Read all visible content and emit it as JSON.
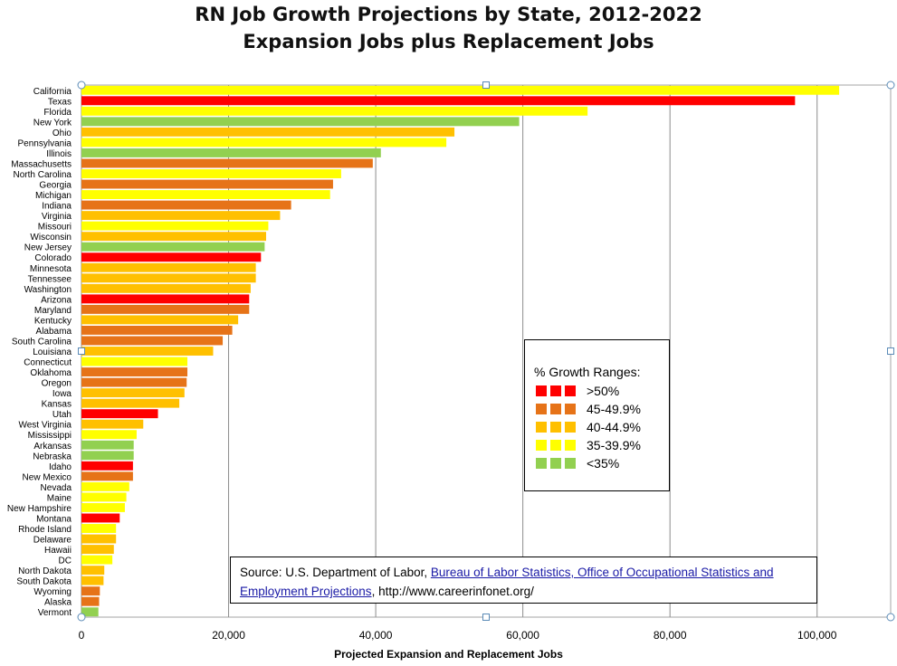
{
  "chart_data": {
    "type": "bar",
    "orientation": "horizontal",
    "title": "RN Job Growth Projections by State, 2012-2022",
    "subtitle": "Expansion Jobs plus Replacement Jobs",
    "xlabel": "Projected Expansion and Replacement Jobs",
    "ylabel": "",
    "xlim": [
      0,
      110000
    ],
    "xticks": [
      0,
      20000,
      40000,
      60000,
      80000,
      100000
    ],
    "xtick_labels": [
      "0",
      "20,000",
      "40,000",
      "60,000",
      "80,000",
      "100,000"
    ],
    "grid": "vertical",
    "categories": [
      "California",
      "Texas",
      "Florida",
      "New York",
      "Ohio",
      "Pennsylvania",
      "Illinois",
      "Massachusetts",
      "North Carolina",
      "Georgia",
      "Michigan",
      "Indiana",
      "Virginia",
      "Missouri",
      "Wisconsin",
      "New Jersey",
      "Colorado",
      "Minnesota",
      "Tennessee",
      "Washington",
      "Arizona",
      "Maryland",
      "Kentucky",
      "Alabama",
      "South Carolina",
      "Louisiana",
      "Connecticut",
      "Oklahoma",
      "Oregon",
      "Iowa",
      "Kansas",
      "Utah",
      "West Virginia",
      "Mississippi",
      "Arkansas",
      "Nebraska",
      "Idaho",
      "New Mexico",
      "Nevada",
      "Maine",
      "New Hampshire",
      "Montana",
      "Rhode Island",
      "Delaware",
      "Hawaii",
      "DC",
      "North Dakota",
      "South Dakota",
      "Wyoming",
      "Alaska",
      "Vermont"
    ],
    "values": [
      103000,
      97000,
      68800,
      59500,
      50700,
      49600,
      40700,
      39600,
      35300,
      34200,
      33800,
      28500,
      27000,
      25400,
      25100,
      24900,
      24400,
      23700,
      23700,
      23000,
      22800,
      22800,
      21300,
      20500,
      19200,
      17900,
      14400,
      14400,
      14300,
      14000,
      13300,
      10400,
      8400,
      7500,
      7100,
      7100,
      7000,
      7000,
      6500,
      6100,
      5900,
      5200,
      4700,
      4700,
      4400,
      4200,
      3100,
      3000,
      2500,
      2400,
      2300
    ],
    "growth_range": [
      3,
      0,
      3,
      4,
      2,
      3,
      4,
      1,
      3,
      1,
      3,
      1,
      2,
      3,
      2,
      4,
      0,
      2,
      2,
      2,
      0,
      1,
      2,
      1,
      1,
      2,
      3,
      1,
      1,
      2,
      2,
      0,
      2,
      3,
      4,
      4,
      0,
      1,
      3,
      3,
      3,
      0,
      3,
      2,
      2,
      3,
      2,
      2,
      1,
      1,
      4
    ],
    "legend": {
      "title": "% Growth Ranges:",
      "placement": "center-right",
      "items": [
        {
          "label": ">50%",
          "color": "#ff0000"
        },
        {
          "label": "45-49.9%",
          "color": "#e67318"
        },
        {
          "label": "40-44.9%",
          "color": "#ffc000"
        },
        {
          "label": "35-39.9%",
          "color": "#ffff00"
        },
        {
          "label": "<35%",
          "color": "#92d050"
        }
      ]
    }
  },
  "source": {
    "prefix": "Source: U.S. Department of Labor, ",
    "link_text": "Bureau of Labor Statistics, Office of Occupational Statistics and Employment Projections",
    "suffix": ", http://www.careerinfonet.org/"
  }
}
